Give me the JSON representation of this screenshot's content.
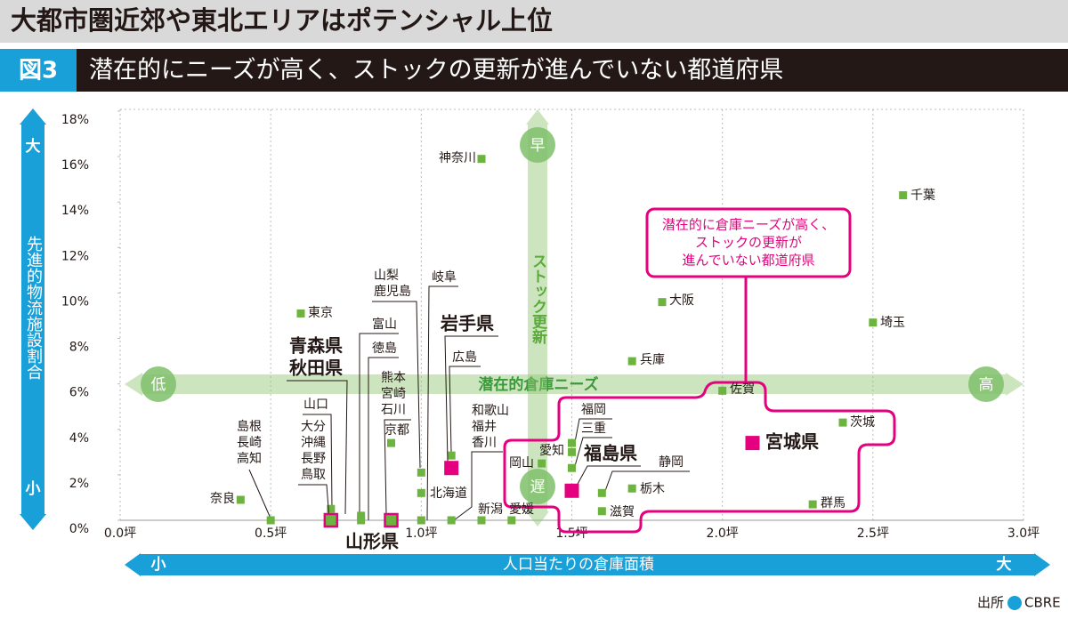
{
  "chart_data": {
    "type": "scatter",
    "title": "大都市圏近郊や東北エリアはポテンシャル上位",
    "figure_label": "図3",
    "subtitle": "潜在的にニーズが高く、ストックの更新が進んでいない都道府県",
    "x_label": "人口当たりの倉庫面積",
    "x_low": "小",
    "x_high": "大",
    "y_label": "先進的物流施設割合",
    "y_high": "大",
    "y_low": "小",
    "needs_label": "潜在的倉庫ニーズ",
    "needs_low": "低",
    "needs_high": "高",
    "stock_label": "ストック更新",
    "stock_fast": "早",
    "stock_slow": "遅",
    "annotation": [
      "潜在的に倉庫ニーズが高く、",
      "ストックの更新が",
      "進んでいない都道府県"
    ],
    "source_label": "出所",
    "source": "CBRE",
    "xlim": [
      0,
      3
    ],
    "xticks": [
      {
        "value": 0,
        "label": "0.0坪"
      },
      {
        "value": 0.5,
        "label": "0.5坪"
      },
      {
        "value": 1,
        "label": "1.0坪"
      },
      {
        "value": 1.5,
        "label": "1.5坪"
      },
      {
        "value": 2,
        "label": "2.0坪"
      },
      {
        "value": 2.5,
        "label": "2.5坪"
      },
      {
        "value": 3,
        "label": "3.0坪"
      }
    ],
    "ylim": [
      0,
      18
    ],
    "yticks": [
      {
        "value": 0,
        "label": "0%"
      },
      {
        "value": 2,
        "label": "2%"
      },
      {
        "value": 4,
        "label": "4%"
      },
      {
        "value": 6,
        "label": "6%"
      },
      {
        "value": 8,
        "label": "8%"
      },
      {
        "value": 10,
        "label": "10%"
      },
      {
        "value": 12,
        "label": "12%"
      },
      {
        "value": 14,
        "label": "14%"
      },
      {
        "value": 16,
        "label": "16%"
      },
      {
        "value": 18,
        "label": "18%"
      }
    ],
    "grid": true,
    "color": "#6db33f",
    "highlight_color": "#e4007f",
    "points": [
      {
        "names": [
          "奈良"
        ],
        "x": 0.4,
        "y": 0.9
      },
      {
        "names": [
          "島根",
          "長崎",
          "高知"
        ],
        "x": 0.5,
        "y": 0
      },
      {
        "names": [
          "山口"
        ],
        "x": 0.7,
        "y": 0.5
      },
      {
        "names": [
          "大分",
          "沖縄",
          "長野",
          "鳥取"
        ],
        "x": 0.7,
        "y": 0
      },
      {
        "names": [
          "青森県",
          "秋田県"
        ],
        "x": 0.7,
        "y": 0,
        "highlight": true,
        "style": "outline"
      },
      {
        "names": [
          "富山"
        ],
        "x": 0.8,
        "y": 0.2
      },
      {
        "names": [
          "徳島"
        ],
        "x": 0.8,
        "y": 0
      },
      {
        "names": [
          "熊本",
          "宮崎",
          "石川"
        ],
        "x": 0.9,
        "y": 0
      },
      {
        "names": [
          "山形県"
        ],
        "x": 0.9,
        "y": 0,
        "highlight": true,
        "style": "outline"
      },
      {
        "names": [
          "京都"
        ],
        "x": 0.9,
        "y": 3.4
      },
      {
        "names": [
          "山梨",
          "鹿児島"
        ],
        "x": 1.0,
        "y": 2.1
      },
      {
        "names": [
          "北海道"
        ],
        "x": 1.0,
        "y": 1.2
      },
      {
        "names": [
          "岐阜"
        ],
        "x": 1.0,
        "y": 0
      },
      {
        "names": [
          "広島"
        ],
        "x": 1.1,
        "y": 2.85
      },
      {
        "names": [
          "岩手県"
        ],
        "x": 1.1,
        "y": 2.3,
        "highlight": true
      },
      {
        "names": [
          "和歌山",
          "福井",
          "香川"
        ],
        "x": 1.1,
        "y": 0
      },
      {
        "names": [
          "神奈川"
        ],
        "x": 1.2,
        "y": 15.9
      },
      {
        "names": [
          "新潟"
        ],
        "x": 1.2,
        "y": 0
      },
      {
        "names": [
          "愛媛"
        ],
        "x": 1.3,
        "y": 0
      },
      {
        "names": [
          "岡山"
        ],
        "x": 1.4,
        "y": 2.5
      },
      {
        "names": [
          "福岡"
        ],
        "x": 1.5,
        "y": 3.4
      },
      {
        "names": [
          "愛知"
        ],
        "x": 1.5,
        "y": 3.0
      },
      {
        "names": [
          "三重"
        ],
        "x": 1.5,
        "y": 2.3
      },
      {
        "names": [
          "福島県"
        ],
        "x": 1.5,
        "y": 1.3,
        "highlight": true
      },
      {
        "names": [
          "静岡"
        ],
        "x": 1.6,
        "y": 1.2
      },
      {
        "names": [
          "滋賀"
        ],
        "x": 1.6,
        "y": 0.4
      },
      {
        "names": [
          "栃木"
        ],
        "x": 1.7,
        "y": 1.4
      },
      {
        "names": [
          "兵庫"
        ],
        "x": 1.7,
        "y": 7.0
      },
      {
        "names": [
          "大阪"
        ],
        "x": 1.8,
        "y": 9.6
      },
      {
        "names": [
          "東京"
        ],
        "x": 0.6,
        "y": 9.1
      },
      {
        "names": [
          "佐賀"
        ],
        "x": 2.0,
        "y": 5.7
      },
      {
        "names": [
          "宮城県"
        ],
        "x": 2.1,
        "y": 3.4,
        "highlight": true
      },
      {
        "names": [
          "群馬"
        ],
        "x": 2.3,
        "y": 0.7
      },
      {
        "names": [
          "茨城"
        ],
        "x": 2.4,
        "y": 4.3
      },
      {
        "names": [
          "埼玉"
        ],
        "x": 2.5,
        "y": 8.7
      },
      {
        "names": [
          "千葉"
        ],
        "x": 2.6,
        "y": 14.3
      }
    ]
  }
}
